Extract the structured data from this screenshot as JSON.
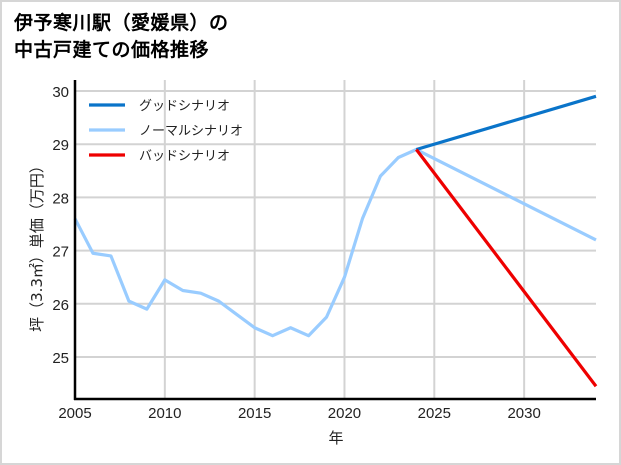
{
  "chart_data": {
    "type": "line",
    "title": "伊予寒川駅（愛媛県）の中古戸建ての価格推移",
    "title_lines": [
      "伊予寒川駅（愛媛県）の",
      "中古戸建ての価格推移"
    ],
    "xlabel": "年",
    "ylabel": "坪（3.3㎡）単価（万円）",
    "xlim": [
      2005,
      2034
    ],
    "ylim": [
      24.2,
      30.2
    ],
    "xticks": [
      2005,
      2010,
      2015,
      2020,
      2025,
      2030
    ],
    "yticks": [
      25,
      26,
      27,
      28,
      29,
      30
    ],
    "grid": true,
    "legend_position": "upper left",
    "series": [
      {
        "name": "グッドシナリオ",
        "color": "#0a74c9",
        "x": [
          2024,
          2034
        ],
        "values": [
          28.9,
          29.9
        ]
      },
      {
        "name": "ノーマルシナリオ",
        "color": "#99ccff",
        "x": [
          2005,
          2006,
          2007,
          2008,
          2009,
          2010,
          2011,
          2012,
          2013,
          2014,
          2015,
          2016,
          2017,
          2018,
          2019,
          2020,
          2021,
          2022,
          2023,
          2024,
          2034
        ],
        "values": [
          27.6,
          26.95,
          26.9,
          26.05,
          25.9,
          26.45,
          26.25,
          26.2,
          26.05,
          25.8,
          25.55,
          25.4,
          25.55,
          25.4,
          25.75,
          26.5,
          27.6,
          28.4,
          28.75,
          28.9,
          27.2
        ]
      },
      {
        "name": "バッドシナリオ",
        "color": "#ee0000",
        "x": [
          2024,
          2034
        ],
        "values": [
          28.9,
          24.45
        ]
      }
    ]
  }
}
